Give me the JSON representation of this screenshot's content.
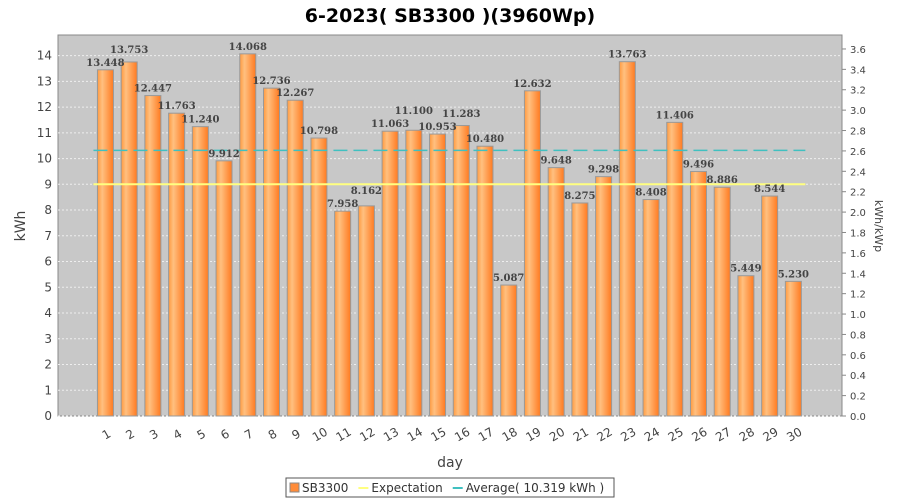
{
  "chart_data": {
    "type": "bar",
    "title": "6-2023( SB3300 )(3960Wp)",
    "xlabel": "day",
    "ylabel": "kWh",
    "y2label": "kWh/kWp",
    "ylim": [
      0,
      14.8
    ],
    "y2lim": [
      0,
      3.737
    ],
    "yticks": [
      0,
      1,
      2,
      3,
      4,
      5,
      6,
      7,
      8,
      9,
      10,
      11,
      12,
      13,
      14
    ],
    "y2ticks": [
      "0.0",
      "0.2",
      "0.4",
      "0.6",
      "0.8",
      "1.0",
      "1.2",
      "1.4",
      "1.6",
      "1.8",
      "2.0",
      "2.2",
      "2.4",
      "2.6",
      "2.8",
      "3.0",
      "3.2",
      "3.4",
      "3.6"
    ],
    "categories": [
      "1",
      "2",
      "3",
      "4",
      "5",
      "6",
      "7",
      "8",
      "9",
      "10",
      "11",
      "12",
      "13",
      "14",
      "15",
      "16",
      "17",
      "18",
      "19",
      "20",
      "21",
      "22",
      "23",
      "24",
      "25",
      "26",
      "27",
      "28",
      "29",
      "30"
    ],
    "series": [
      {
        "name": "SB3300",
        "values": [
          13.448,
          13.753,
          12.447,
          11.763,
          11.24,
          9.912,
          14.068,
          12.736,
          12.267,
          10.798,
          7.958,
          8.162,
          11.063,
          11.1,
          10.953,
          11.283,
          10.48,
          5.087,
          12.632,
          9.648,
          8.275,
          9.298,
          13.763,
          8.408,
          11.406,
          9.496,
          8.886,
          5.449,
          8.544,
          5.23
        ]
      }
    ],
    "expectation": 9.0,
    "average": 10.319,
    "legend": [
      "SB3300",
      "Expectation",
      "Average( 10.319 kWh )"
    ],
    "legend_position": "bottom",
    "grid": true,
    "colors": {
      "bar": "#ff8c3a",
      "expectation": "#ffff80",
      "average": "#40c0c0",
      "plot_bg": "#c8c8c8"
    }
  }
}
